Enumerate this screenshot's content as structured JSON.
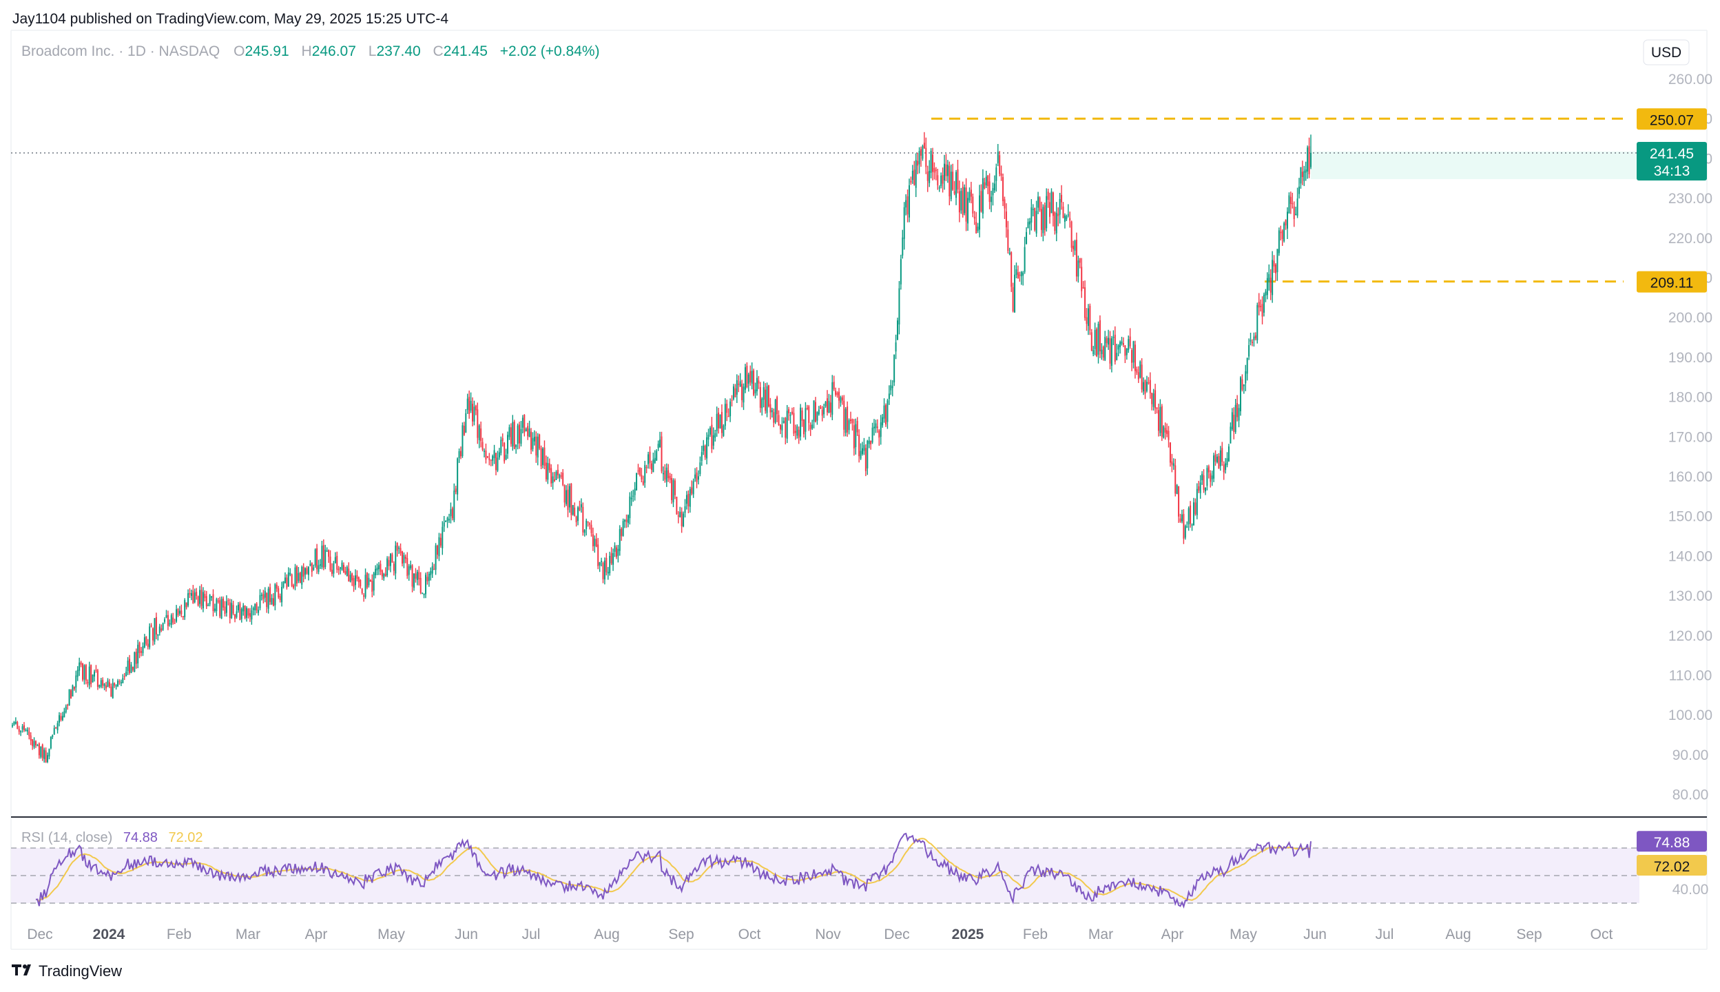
{
  "header": {
    "publisher": "Jay1104 published on TradingView.com, May 29, 2025 15:25 UTC-4"
  },
  "legend": {
    "symbol": "Broadcom Inc. · 1D · NASDAQ",
    "o_label": "O",
    "o_value": "245.91",
    "h_label": "H",
    "h_value": "246.07",
    "l_label": "L",
    "l_value": "237.40",
    "c_label": "C",
    "c_value": "241.45",
    "change": "+2.02 (+0.84%)"
  },
  "currency": "USD",
  "footer": {
    "brand": "TradingView"
  },
  "colors": {
    "up": "#089981",
    "down": "#f23645",
    "level": "#f2b90f",
    "rsi": "#7e57c2",
    "rsi_ma": "#f2c94c",
    "rsi_band": "#f3eefb"
  },
  "chart_data": [
    {
      "type": "candlestick",
      "ylim": [
        75,
        265
      ],
      "y_ticks": [
        "260.00",
        "250.00",
        "240.00",
        "230.00",
        "220.00",
        "210.00",
        "200.00",
        "190.00",
        "180.00",
        "170.00",
        "160.00",
        "150.00",
        "140.00",
        "130.00",
        "120.00",
        "110.00",
        "100.00",
        "90.00",
        "80.00"
      ],
      "x_ticks": [
        "Dec",
        "2024",
        "Feb",
        "Mar",
        "Apr",
        "May",
        "Jun",
        "Jul",
        "Aug",
        "Sep",
        "Oct",
        "Nov",
        "Dec",
        "2025",
        "Feb",
        "Mar",
        "Apr",
        "May",
        "Jun",
        "Jul",
        "Aug",
        "Sep",
        "Oct"
      ],
      "bold_ticks": [
        "2024",
        "2025"
      ],
      "last_price": {
        "value": 241.45,
        "label": "241.45",
        "countdown": "34:13"
      },
      "levels": [
        {
          "value": 250.07,
          "label": "250.07"
        },
        {
          "value": 209.11,
          "label": "209.11"
        }
      ],
      "anchors": [
        {
          "d": 0,
          "p": 98
        },
        {
          "d": 20,
          "p": 90
        },
        {
          "d": 40,
          "p": 112
        },
        {
          "d": 60,
          "p": 106
        },
        {
          "d": 85,
          "p": 122
        },
        {
          "d": 110,
          "p": 130
        },
        {
          "d": 140,
          "p": 125
        },
        {
          "d": 165,
          "p": 133
        },
        {
          "d": 185,
          "p": 140
        },
        {
          "d": 210,
          "p": 132
        },
        {
          "d": 230,
          "p": 140
        },
        {
          "d": 245,
          "p": 132
        },
        {
          "d": 262,
          "p": 150
        },
        {
          "d": 272,
          "p": 180
        },
        {
          "d": 285,
          "p": 163
        },
        {
          "d": 305,
          "p": 173
        },
        {
          "d": 320,
          "p": 162
        },
        {
          "d": 340,
          "p": 150
        },
        {
          "d": 355,
          "p": 135
        },
        {
          "d": 370,
          "p": 155
        },
        {
          "d": 385,
          "p": 168
        },
        {
          "d": 400,
          "p": 150
        },
        {
          "d": 420,
          "p": 172
        },
        {
          "d": 440,
          "p": 185
        },
        {
          "d": 465,
          "p": 172
        },
        {
          "d": 490,
          "p": 180
        },
        {
          "d": 510,
          "p": 165
        },
        {
          "d": 525,
          "p": 180
        },
        {
          "d": 533,
          "p": 225
        },
        {
          "d": 540,
          "p": 240
        },
        {
          "d": 560,
          "p": 235
        },
        {
          "d": 575,
          "p": 225
        },
        {
          "d": 590,
          "p": 240
        },
        {
          "d": 598,
          "p": 205
        },
        {
          "d": 610,
          "p": 225
        },
        {
          "d": 630,
          "p": 228
        },
        {
          "d": 645,
          "p": 195
        },
        {
          "d": 670,
          "p": 190
        },
        {
          "d": 690,
          "p": 170
        },
        {
          "d": 700,
          "p": 145
        },
        {
          "d": 712,
          "p": 160
        },
        {
          "d": 725,
          "p": 165
        },
        {
          "d": 740,
          "p": 195
        },
        {
          "d": 752,
          "p": 210
        },
        {
          "d": 762,
          "p": 225
        },
        {
          "d": 776,
          "p": 241.45
        }
      ],
      "rsi": {
        "name": "RSI (14, close)",
        "value": 74.88,
        "value_label": "74.88",
        "ma": 72.02,
        "ma_label": "72.02",
        "ylim": [
          25,
          85
        ],
        "upper": 70,
        "middle": 50,
        "lower": 30,
        "tick": "40.00"
      }
    }
  ]
}
